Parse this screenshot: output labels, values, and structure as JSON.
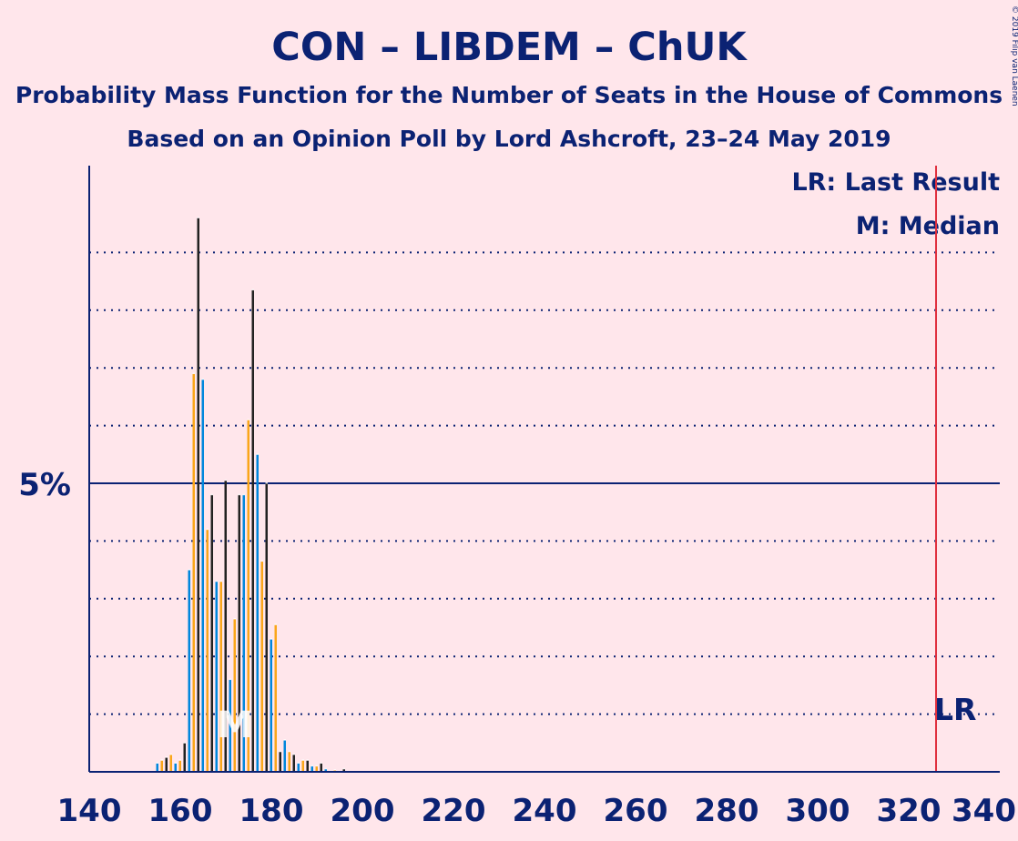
{
  "copyright": "© 2019 Filip van Laenen",
  "chart_data": {
    "type": "bar",
    "title": "CON – LIBDEM – ChUK",
    "subtitle": "Probability Mass Function for the Number of Seats in the House of Commons",
    "subtitle2": "Based on an Opinion Poll by Lord Ashcroft, 23–24 May 2019",
    "xlabel": "",
    "ylabel": "",
    "xlim": [
      140,
      340
    ],
    "ylim": [
      0,
      10.5
    ],
    "x_ticks": [
      140,
      160,
      180,
      200,
      220,
      240,
      260,
      280,
      300,
      320,
      340
    ],
    "x_tick_labels": [
      "140",
      "160",
      "180",
      "200",
      "220",
      "240",
      "260",
      "280",
      "300",
      "320",
      "340"
    ],
    "y_major_tick": 5,
    "y_major_label": "5%",
    "y_minor_ticks": [
      1,
      2,
      3,
      4,
      6,
      7,
      8,
      9
    ],
    "grid": "dotted horizontal",
    "legend": {
      "position": "top-right",
      "entries": [
        "LR: Last Result",
        "M: Median"
      ]
    },
    "last_result": {
      "x": 326,
      "label": "LR",
      "color": "#E0303F"
    },
    "median": {
      "x": 172,
      "label": "M"
    },
    "colors": {
      "CON": "#0087DC",
      "LIBDEM": "#FAA61A",
      "ChUK": "#222221",
      "axis": "#0B2273",
      "background": "#FFE6EB"
    },
    "series": [
      {
        "color_key": "CON",
        "points": [
          [
            155,
            0.15
          ],
          [
            157,
            0.2
          ],
          [
            159,
            0.15
          ],
          [
            162,
            3.5
          ],
          [
            165,
            6.8
          ],
          [
            168,
            3.3
          ],
          [
            171,
            1.6
          ],
          [
            174,
            4.8
          ],
          [
            177,
            5.5
          ],
          [
            180,
            2.3
          ],
          [
            183,
            0.55
          ],
          [
            186,
            0.15
          ],
          [
            189,
            0.1
          ],
          [
            192,
            0.05
          ]
        ]
      },
      {
        "color_key": "LIBDEM",
        "points": [
          [
            156,
            0.2
          ],
          [
            158,
            0.3
          ],
          [
            160,
            0.2
          ],
          [
            163,
            6.9
          ],
          [
            166,
            4.2
          ],
          [
            169,
            3.3
          ],
          [
            172,
            2.65
          ],
          [
            175,
            6.1
          ],
          [
            178,
            3.65
          ],
          [
            181,
            2.55
          ],
          [
            184,
            0.35
          ],
          [
            187,
            0.2
          ],
          [
            190,
            0.1
          ],
          [
            194,
            0.03
          ]
        ]
      },
      {
        "color_key": "ChUK",
        "points": [
          [
            157,
            0.25
          ],
          [
            161,
            0.5
          ],
          [
            164,
            9.6
          ],
          [
            167,
            4.8
          ],
          [
            170,
            5.05
          ],
          [
            173,
            4.8
          ],
          [
            176,
            8.35
          ],
          [
            179,
            5.0
          ],
          [
            182,
            0.35
          ],
          [
            185,
            0.3
          ],
          [
            188,
            0.2
          ],
          [
            191,
            0.15
          ],
          [
            196,
            0.05
          ]
        ]
      }
    ]
  }
}
